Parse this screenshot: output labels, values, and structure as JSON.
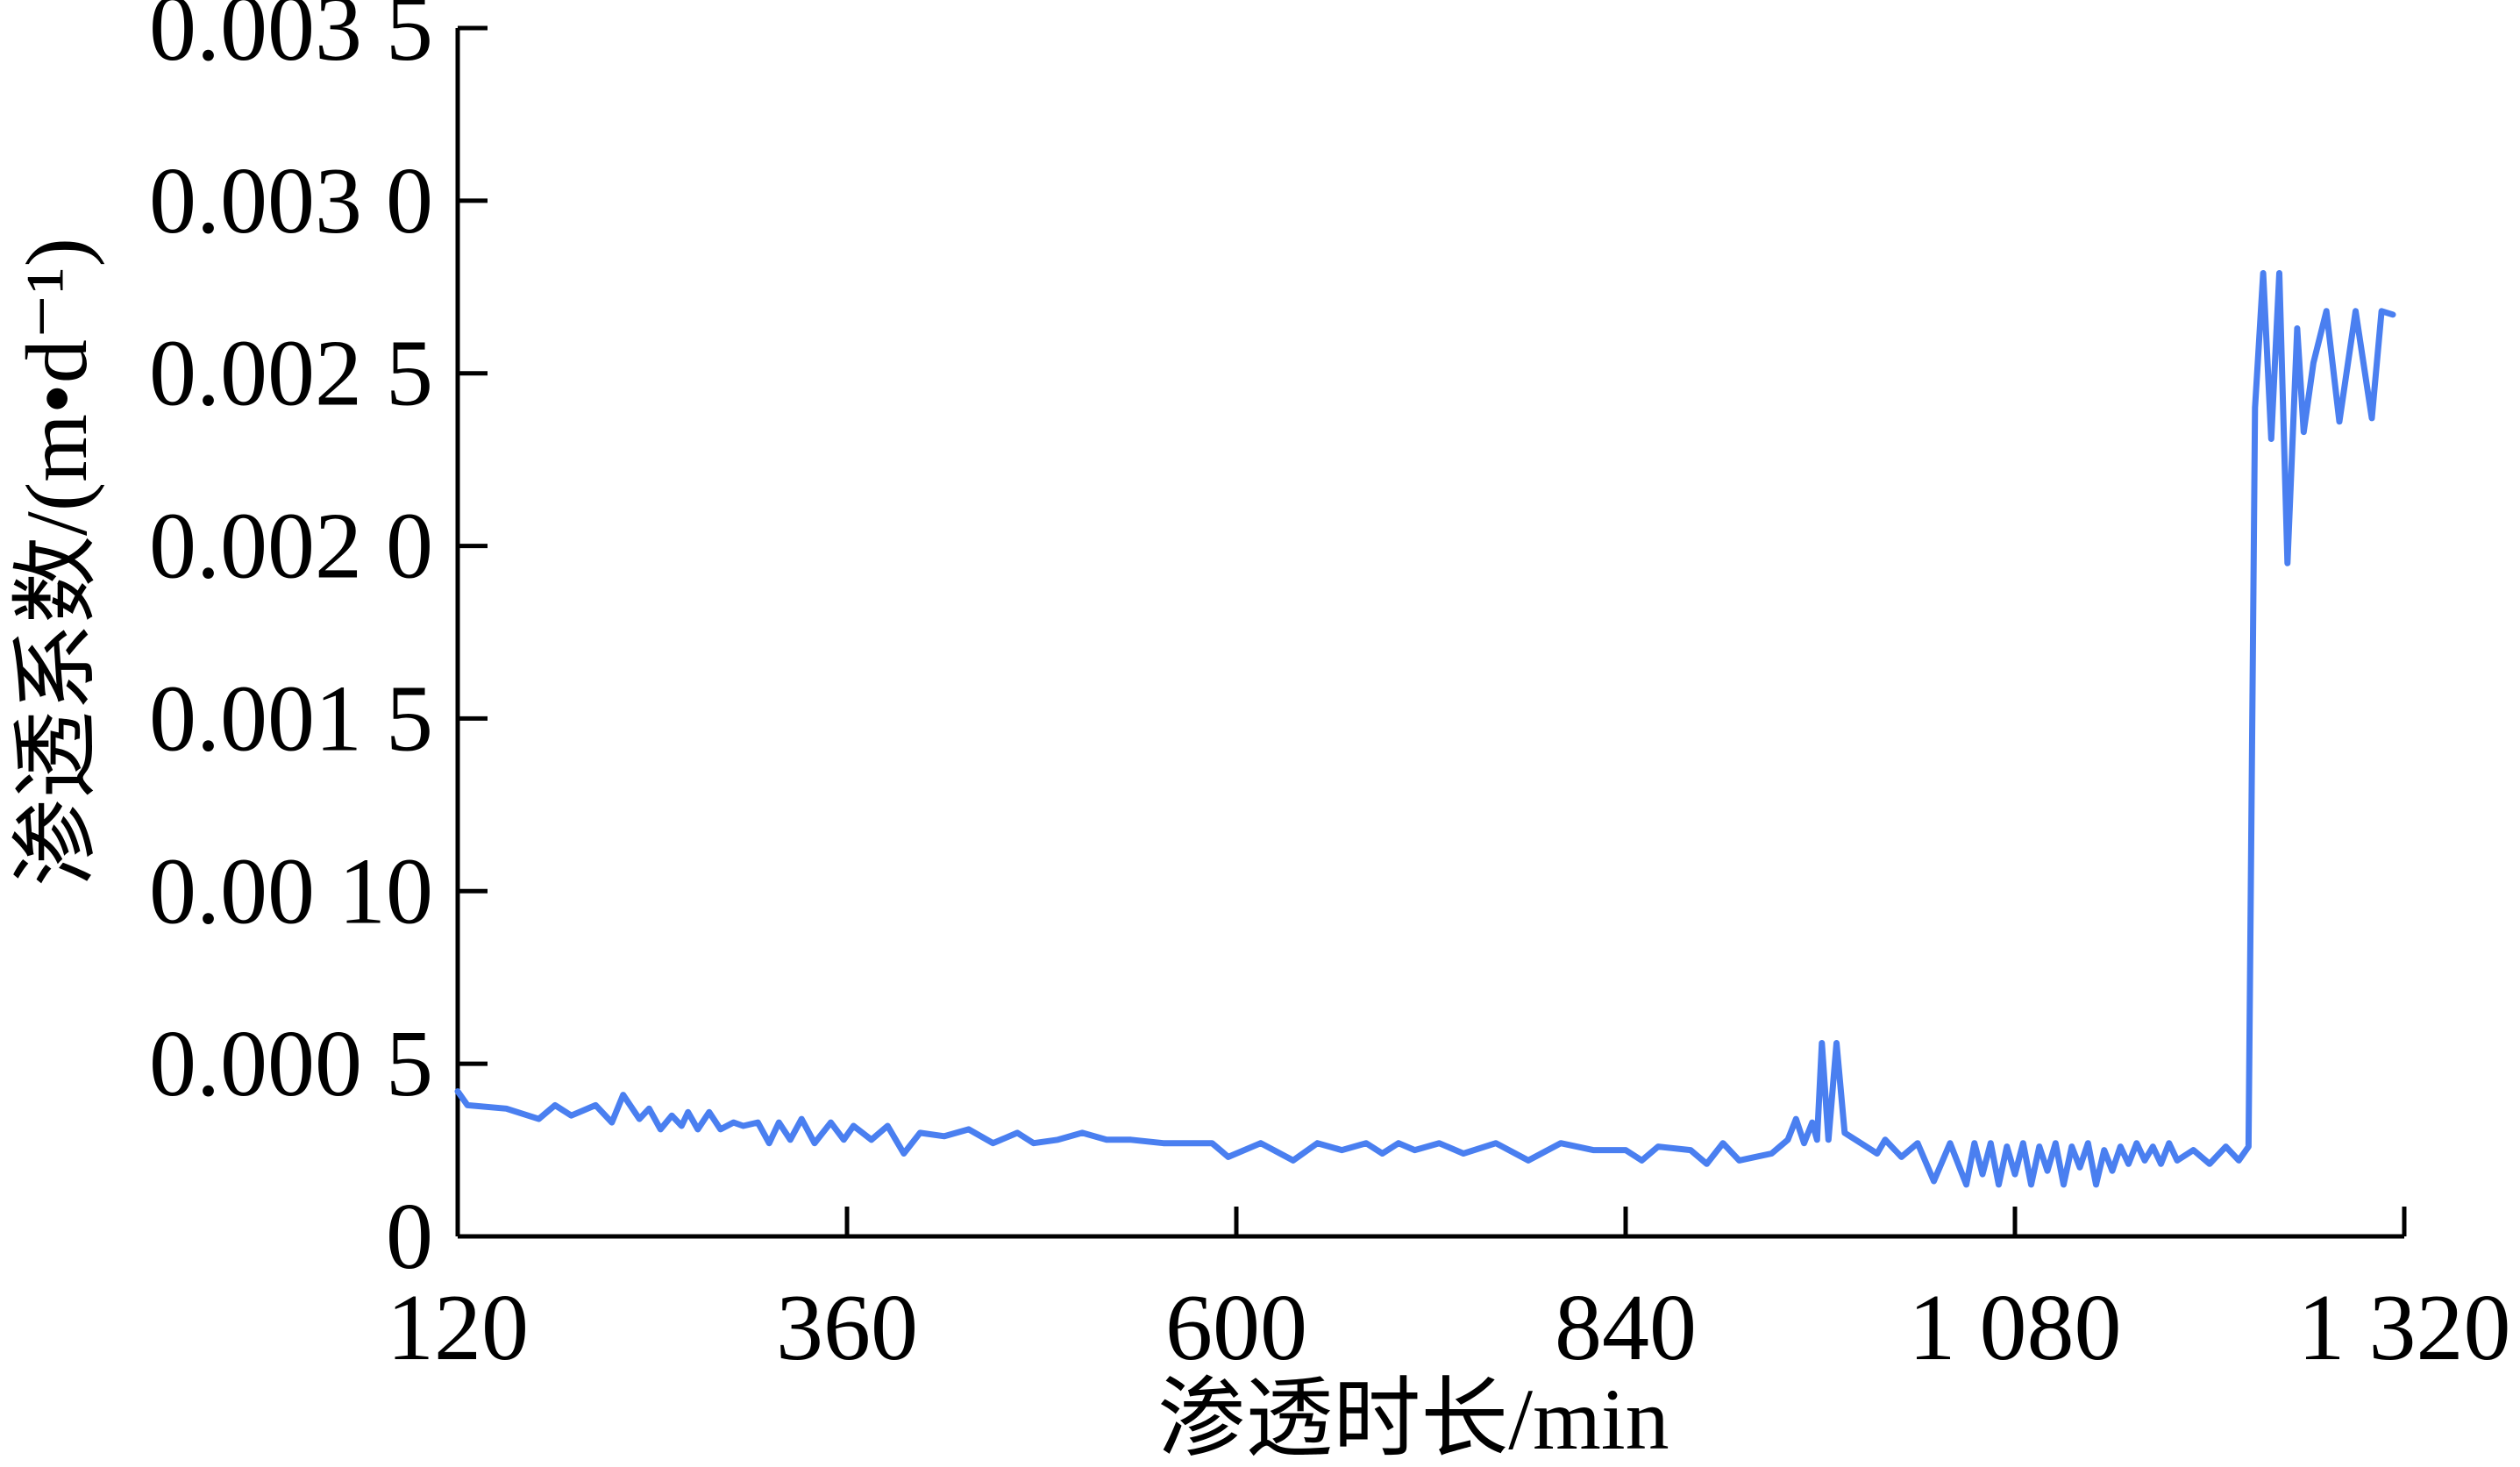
{
  "chart_data": {
    "type": "line",
    "title": "",
    "xlabel": "渗透时长/min",
    "ylabel": "渗透系数/(m•d⁻¹)",
    "xlim": [
      120,
      1320
    ],
    "ylim": [
      0,
      0.0035
    ],
    "xticks": [
      120,
      360,
      600,
      840,
      1080,
      1320
    ],
    "xtick_labels": [
      "120",
      "360",
      "600",
      "840",
      "1 080",
      "1 320"
    ],
    "yticks": [
      0,
      0.0005,
      0.001,
      0.0015,
      0.002,
      0.0025,
      0.003,
      0.0035
    ],
    "ytick_labels": [
      "0",
      "0.000 5",
      "0.00 10",
      "0.001 5",
      "0.002 0",
      "0.002 5",
      "0.003 0",
      "0.003 5"
    ],
    "grid": false,
    "line_color": "#4a7ff0",
    "series": [
      {
        "name": "",
        "x": [
          120,
          126,
          150,
          170,
          180,
          190,
          205,
          215,
          222,
          232,
          238,
          245,
          252,
          258,
          262,
          268,
          275,
          282,
          290,
          296,
          305,
          312,
          318,
          325,
          332,
          340,
          350,
          358,
          364,
          375,
          385,
          395,
          405,
          420,
          435,
          450,
          465,
          475,
          490,
          505,
          520,
          535,
          555,
          575,
          585,
          595,
          615,
          635,
          650,
          665,
          680,
          690,
          700,
          710,
          725,
          740,
          760,
          780,
          800,
          820,
          840,
          850,
          860,
          880,
          890,
          900,
          910,
          920,
          930,
          940,
          945,
          950,
          955,
          958,
          961,
          965,
          970,
          975,
          985,
          995,
          1000,
          1010,
          1020,
          1030,
          1040,
          1050,
          1055,
          1060,
          1065,
          1070,
          1075,
          1080,
          1085,
          1090,
          1095,
          1100,
          1105,
          1110,
          1115,
          1120,
          1125,
          1130,
          1135,
          1140,
          1145,
          1150,
          1155,
          1160,
          1165,
          1170,
          1175,
          1180,
          1190,
          1200,
          1210,
          1218,
          1224,
          1228,
          1233,
          1238,
          1243,
          1248,
          1254,
          1258,
          1264,
          1272,
          1280,
          1290,
          1300,
          1306,
          1313
        ],
        "y": [
          0.00042,
          0.00038,
          0.00037,
          0.00034,
          0.00038,
          0.00035,
          0.00038,
          0.00033,
          0.00041,
          0.00034,
          0.00037,
          0.00031,
          0.00035,
          0.00032,
          0.00036,
          0.00031,
          0.00036,
          0.00031,
          0.00033,
          0.00032,
          0.00033,
          0.00027,
          0.00033,
          0.00028,
          0.00034,
          0.00027,
          0.00033,
          0.00028,
          0.00032,
          0.00028,
          0.00032,
          0.00024,
          0.0003,
          0.00029,
          0.00031,
          0.00027,
          0.0003,
          0.00027,
          0.00028,
          0.0003,
          0.00028,
          0.00028,
          0.00027,
          0.00027,
          0.00027,
          0.00023,
          0.00027,
          0.00022,
          0.00027,
          0.00025,
          0.00027,
          0.00024,
          0.00027,
          0.00025,
          0.00027,
          0.00024,
          0.00027,
          0.00022,
          0.00027,
          0.00025,
          0.00025,
          0.00022,
          0.00026,
          0.00025,
          0.00021,
          0.00027,
          0.00022,
          0.00023,
          0.00024,
          0.00028,
          0.00034,
          0.00027,
          0.00033,
          0.00028,
          0.00056,
          0.00028,
          0.00056,
          0.0003,
          0.00027,
          0.00024,
          0.00028,
          0.00023,
          0.00027,
          0.00016,
          0.00027,
          0.00015,
          0.00027,
          0.00018,
          0.00027,
          0.00015,
          0.00026,
          0.00018,
          0.00027,
          0.00015,
          0.00026,
          0.00019,
          0.00027,
          0.00015,
          0.00026,
          0.0002,
          0.00027,
          0.00015,
          0.00025,
          0.00019,
          0.00026,
          0.00021,
          0.00027,
          0.00022,
          0.00026,
          0.00021,
          0.00027,
          0.00022,
          0.00025,
          0.00021,
          0.00026,
          0.00022,
          0.00026,
          0.0024,
          0.00279,
          0.00231,
          0.00279,
          0.00195,
          0.00263,
          0.00233,
          0.00253,
          0.00268,
          0.00236,
          0.00268,
          0.00237,
          0.00268,
          0.00267
        ]
      }
    ]
  }
}
